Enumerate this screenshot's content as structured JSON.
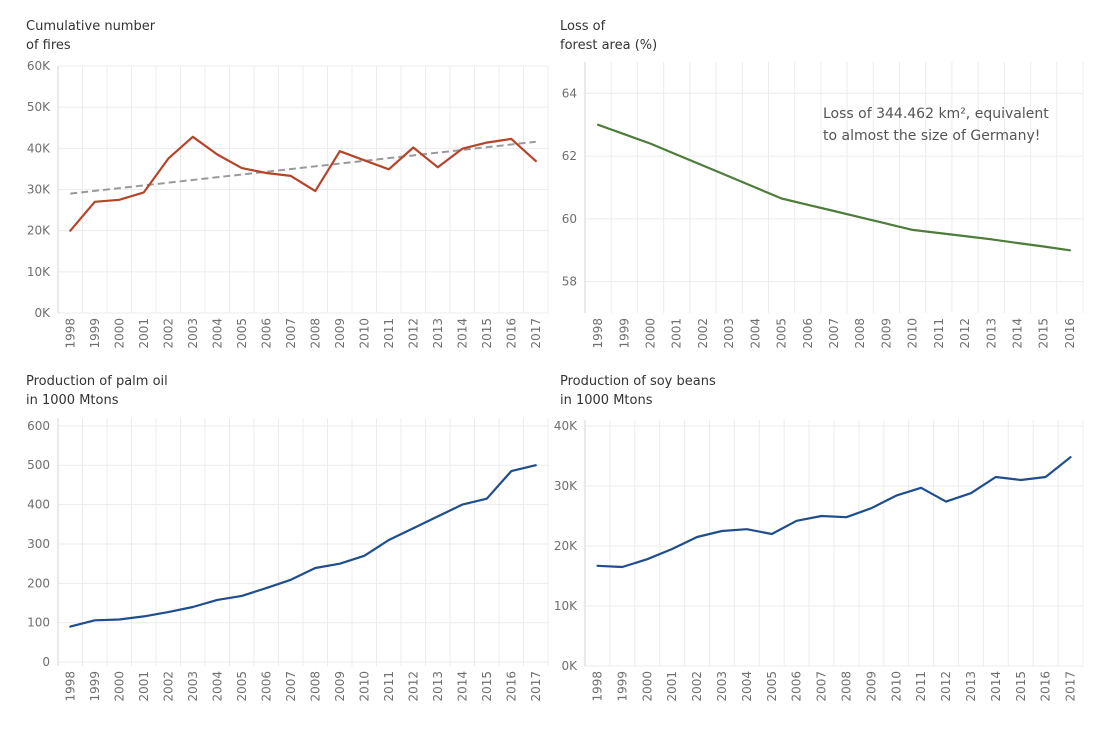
{
  "charts": [
    {
      "id": "fires",
      "type": "line",
      "title_lines": [
        "Cumulative number",
        "of fires"
      ],
      "x": [
        "1998",
        "1999",
        "2000",
        "2001",
        "2002",
        "2003",
        "2004",
        "2005",
        "2006",
        "2007",
        "2008",
        "2009",
        "2010",
        "2011",
        "2012",
        "2013",
        "2014",
        "2015",
        "2016",
        "2017"
      ],
      "ylim": [
        0,
        60000
      ],
      "yticks": [
        {
          "value": 0,
          "label": "0K"
        },
        {
          "value": 10000,
          "label": "10K"
        },
        {
          "value": 20000,
          "label": "20K"
        },
        {
          "value": 30000,
          "label": "30K"
        },
        {
          "value": 40000,
          "label": "40K"
        },
        {
          "value": 50000,
          "label": "50K"
        },
        {
          "value": 60000,
          "label": "60K"
        }
      ],
      "series": [
        {
          "values": [
            20000,
            27000,
            27500,
            29300,
            37500,
            42800,
            38500,
            35200,
            34000,
            33300,
            29600,
            39300,
            37100,
            34900,
            40200,
            35400,
            39900,
            41400,
            42300,
            36900
          ],
          "color": "#b5452a",
          "style": "solid"
        }
      ],
      "trendline": {
        "values": [
          29000,
          41600
        ],
        "color": "#9a9a9a",
        "style": "dashed"
      },
      "annotation_lines": []
    },
    {
      "id": "forest",
      "type": "line",
      "title_lines": [
        "Loss of",
        "forest area (%)"
      ],
      "x": [
        "1998",
        "1999",
        "2000",
        "2001",
        "2002",
        "2003",
        "2004",
        "2005",
        "2006",
        "2007",
        "2008",
        "2009",
        "2010",
        "2011",
        "2012",
        "2013",
        "2014",
        "2015",
        "2016"
      ],
      "ylim": [
        57,
        65
      ],
      "yticks": [
        {
          "value": 58,
          "label": "58"
        },
        {
          "value": 60,
          "label": "60"
        },
        {
          "value": 62,
          "label": "62"
        },
        {
          "value": 64,
          "label": "64"
        }
      ],
      "series": [
        {
          "values": [
            63.0,
            62.7,
            62.4,
            62.05,
            61.7,
            61.35,
            61.0,
            60.65,
            60.45,
            60.25,
            60.05,
            59.85,
            59.65,
            59.55,
            59.45,
            59.35,
            59.23,
            59.12,
            59.0
          ],
          "color": "#4e7c3a",
          "style": "solid"
        }
      ],
      "trendline": null,
      "annotation_lines": [
        "Loss of 344.462 km², equivalent",
        "to almost the size of Germany!"
      ]
    },
    {
      "id": "palm",
      "type": "line",
      "title_lines": [
        "Production of palm oil",
        "in 1000 Mtons"
      ],
      "x": [
        "1998",
        "1999",
        "2000",
        "2001",
        "2002",
        "2003",
        "2004",
        "2005",
        "2006",
        "2007",
        "2008",
        "2009",
        "2010",
        "2011",
        "2012",
        "2013",
        "2014",
        "2015",
        "2016",
        "2017"
      ],
      "ylim": [
        -10,
        620
      ],
      "yticks": [
        {
          "value": 0,
          "label": "0"
        },
        {
          "value": 100,
          "label": "100"
        },
        {
          "value": 200,
          "label": "200"
        },
        {
          "value": 300,
          "label": "300"
        },
        {
          "value": 400,
          "label": "400"
        },
        {
          "value": 500,
          "label": "500"
        },
        {
          "value": 600,
          "label": "600"
        }
      ],
      "series": [
        {
          "values": [
            90,
            106,
            108,
            116,
            127,
            140,
            158,
            168,
            188,
            209,
            239,
            250,
            270,
            310,
            340,
            370,
            400,
            415,
            485,
            500
          ],
          "color": "#1f4e8c",
          "style": "solid"
        }
      ],
      "trendline": null,
      "annotation_lines": []
    },
    {
      "id": "soy",
      "type": "line",
      "title_lines": [
        "Production of soy beans",
        "in 1000 Mtons"
      ],
      "x": [
        "1998",
        "1999",
        "2000",
        "2001",
        "2002",
        "2003",
        "2004",
        "2005",
        "2006",
        "2007",
        "2008",
        "2009",
        "2010",
        "2011",
        "2012",
        "2013",
        "2014",
        "2015",
        "2016",
        "2017"
      ],
      "ylim": [
        0,
        41000
      ],
      "yticks": [
        {
          "value": 0,
          "label": "0K"
        },
        {
          "value": 10000,
          "label": "10K"
        },
        {
          "value": 20000,
          "label": "20K"
        },
        {
          "value": 30000,
          "label": "30K"
        },
        {
          "value": 40000,
          "label": "40K"
        }
      ],
      "series": [
        {
          "values": [
            16700,
            16500,
            17800,
            19500,
            21500,
            22500,
            22800,
            22000,
            24200,
            25000,
            24800,
            26300,
            28400,
            29700,
            27400,
            28800,
            31500,
            31000,
            31500,
            34800
          ],
          "color": "#1f4e8c",
          "style": "solid"
        }
      ],
      "trendline": null,
      "annotation_lines": []
    }
  ]
}
